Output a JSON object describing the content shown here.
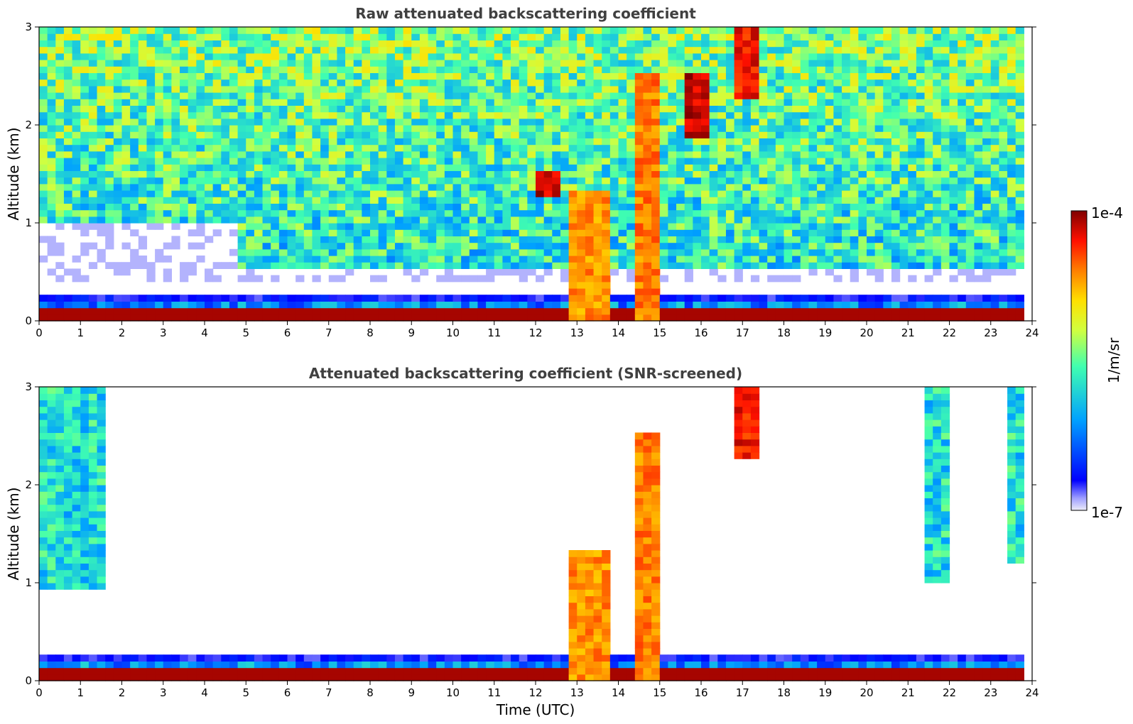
{
  "chart_data": [
    {
      "type": "heatmap",
      "title": "Raw attenuated backscattering coefficient",
      "xlabel": "",
      "ylabel": "Altitude (km)",
      "xlim": [
        0,
        24
      ],
      "ylim": [
        0,
        3
      ],
      "xticks": [
        "0",
        "1",
        "2",
        "3",
        "4",
        "5",
        "6",
        "7",
        "8",
        "9",
        "10",
        "11",
        "12",
        "13",
        "14",
        "15",
        "16",
        "17",
        "18",
        "19",
        "20",
        "21",
        "22",
        "23",
        "24"
      ],
      "yticks": [
        "0",
        "1",
        "2",
        "3"
      ],
      "color_scale": "jet",
      "color_range": [
        "1e-7",
        "1e-4"
      ],
      "features": [
        {
          "kind": "boundary-layer",
          "t_start": 0,
          "t_end": 23.8,
          "alt_top": 0.12,
          "level": 1.0
        },
        {
          "kind": "aerosol-layer",
          "t_start": 0,
          "t_end": 23.8,
          "alt_top": 0.28,
          "level": 0.3
        },
        {
          "kind": "cloud",
          "t_start": 12.9,
          "t_end": 13.8,
          "alt_bottom": 0,
          "alt_top": 1.3,
          "level": 0.78
        },
        {
          "kind": "cloud",
          "t_start": 14.4,
          "t_end": 14.9,
          "alt_bottom": 0,
          "alt_top": 2.5,
          "level": 0.8
        },
        {
          "kind": "cloud",
          "t_start": 12.0,
          "t_end": 12.5,
          "alt_bottom": 1.3,
          "alt_top": 1.5,
          "level": 0.95
        },
        {
          "kind": "cloud",
          "t_start": 16.8,
          "t_end": 17.4,
          "alt_bottom": 2.3,
          "alt_top": 3.0,
          "level": 0.9
        },
        {
          "kind": "cloud",
          "t_start": 15.6,
          "t_end": 16.1,
          "alt_bottom": 1.9,
          "alt_top": 2.5,
          "level": 0.95
        }
      ]
    },
    {
      "type": "heatmap",
      "title": "Attenuated backscattering coefficient (SNR-screened)",
      "xlabel": "Time (UTC)",
      "ylabel": "Altitude (km)",
      "xlim": [
        0,
        24
      ],
      "ylim": [
        0,
        3
      ],
      "xticks": [
        "0",
        "1",
        "2",
        "3",
        "4",
        "5",
        "6",
        "7",
        "8",
        "9",
        "10",
        "11",
        "12",
        "13",
        "14",
        "15",
        "16",
        "17",
        "18",
        "19",
        "20",
        "21",
        "22",
        "23",
        "24"
      ],
      "yticks": [
        "0",
        "1",
        "2",
        "3"
      ],
      "color_scale": "jet",
      "color_range": [
        "1e-7",
        "1e-4"
      ],
      "features": [
        {
          "kind": "boundary-layer",
          "t_start": 0,
          "t_end": 23.8,
          "alt_top": 0.12,
          "level": 1.0
        },
        {
          "kind": "aerosol-layer",
          "t_start": 0,
          "t_end": 23.8,
          "alt_top": 0.28,
          "level": 0.3
        },
        {
          "kind": "cloud",
          "t_start": 12.9,
          "t_end": 13.8,
          "alt_bottom": 0,
          "alt_top": 1.3,
          "level": 0.78
        },
        {
          "kind": "cloud",
          "t_start": 14.4,
          "t_end": 14.9,
          "alt_bottom": 0,
          "alt_top": 2.5,
          "level": 0.8
        },
        {
          "kind": "cloud",
          "t_start": 16.8,
          "t_end": 17.4,
          "alt_bottom": 2.3,
          "alt_top": 3.0,
          "level": 0.9
        }
      ]
    }
  ],
  "colorbar": {
    "label": "1/m/sr",
    "max_label": "1e-4",
    "min_label": "1e-7",
    "colors": [
      "#ececf8",
      "#0000ff",
      "#00a0ff",
      "#40ffb0",
      "#d0ff40",
      "#ffa000",
      "#ff2000",
      "#800000"
    ]
  }
}
